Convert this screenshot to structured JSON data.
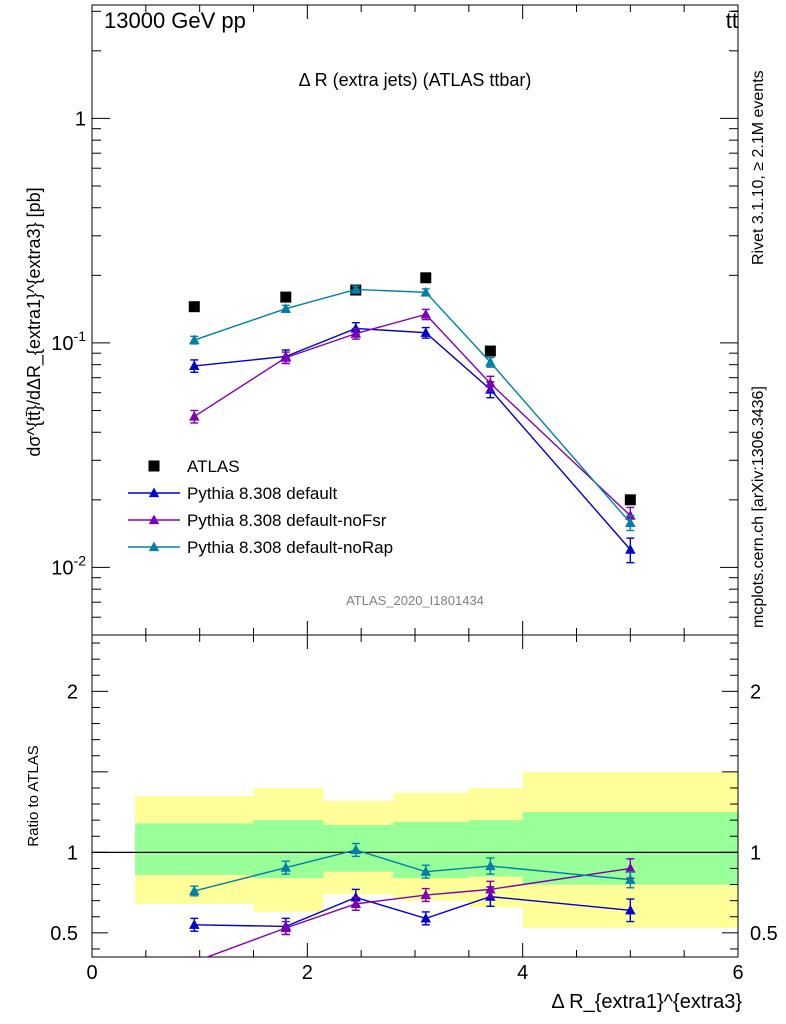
{
  "header": {
    "energy_label": "13000 GeV pp",
    "process_label": "tt̄"
  },
  "side_labels": {
    "rivet": "Rivet 3.1.10, ≥ 2.1M events",
    "mcplots": "mcplots.cern.ch [arXiv:1306.3436]"
  },
  "chart_data": [
    {
      "type": "scatter",
      "panel": "main",
      "title": "Δ R (extra jets) (ATLAS ttbar)",
      "analysis_label": "ATLAS_2020_I1801434",
      "ylabel": "dσ^{tt̄}/dΔR_{extra1}^{extra3} [pb]",
      "yscale": "log",
      "xlim": [
        0,
        6
      ],
      "ylim": [
        0.005,
        3.2
      ],
      "ytick_labels": [
        "10^{-2}",
        "10^{-1}",
        "1"
      ],
      "x": [
        0.95,
        1.8,
        2.45,
        3.1,
        3.7,
        5.0
      ],
      "legend_placement": "lower-left",
      "series": [
        {
          "name": "ATLAS",
          "marker": "square",
          "color": "#000000",
          "values": [
            0.145,
            0.16,
            0.172,
            0.195,
            0.092,
            0.02
          ]
        },
        {
          "name": "Pythia 8.308 default",
          "marker": "triangle",
          "color": "#0000cc",
          "values": [
            0.079,
            0.087,
            0.116,
            0.111,
            0.062,
            0.012
          ],
          "errors": [
            0.005,
            0.006,
            0.007,
            0.006,
            0.005,
            0.0015
          ]
        },
        {
          "name": "Pythia 8.308 default-noFsr",
          "marker": "triangle",
          "color": "#8000b0",
          "values": [
            0.047,
            0.086,
            0.11,
            0.134,
            0.066,
            0.017
          ],
          "errors": [
            0.003,
            0.005,
            0.006,
            0.007,
            0.005,
            0.0015
          ]
        },
        {
          "name": "Pythia 8.308 default-noRap",
          "marker": "triangle",
          "color": "#0080a8",
          "values": [
            0.103,
            0.142,
            0.173,
            0.168,
            0.082,
            0.0158
          ],
          "errors": [
            0.004,
            0.005,
            0.006,
            0.006,
            0.004,
            0.0012
          ]
        }
      ]
    },
    {
      "type": "scatter",
      "panel": "ratio",
      "ylabel": "Ratio to ATLAS",
      "xlabel": "Δ R_{extra1}^{extra3}",
      "xlim": [
        0,
        6
      ],
      "ylim": [
        0.35,
        2.35
      ],
      "x_ticks": [
        0,
        2,
        4,
        6
      ],
      "y_ticks": [
        0.5,
        1,
        2
      ],
      "reference_line": 1,
      "bands": [
        {
          "x_low": 0.4,
          "x_high": 1.5,
          "stat_low": 0.86,
          "stat_high": 1.18,
          "total_low": 0.68,
          "total_high": 1.35
        },
        {
          "x_low": 1.5,
          "x_high": 2.15,
          "stat_low": 0.84,
          "stat_high": 1.2,
          "total_low": 0.63,
          "total_high": 1.4
        },
        {
          "x_low": 2.15,
          "x_high": 2.8,
          "stat_low": 0.88,
          "stat_high": 1.17,
          "total_low": 0.74,
          "total_high": 1.32
        },
        {
          "x_low": 2.8,
          "x_high": 3.5,
          "stat_low": 0.84,
          "stat_high": 1.19,
          "total_low": 0.7,
          "total_high": 1.37
        },
        {
          "x_low": 3.5,
          "x_high": 4.0,
          "stat_low": 0.85,
          "stat_high": 1.2,
          "total_low": 0.66,
          "total_high": 1.4
        },
        {
          "x_low": 4.0,
          "x_high": 6.0,
          "stat_low": 0.8,
          "stat_high": 1.25,
          "total_low": 0.53,
          "total_high": 1.5
        }
      ],
      "x": [
        0.95,
        1.8,
        2.45,
        3.1,
        3.7,
        5.0
      ],
      "series": [
        {
          "name": "Pythia 8.308 default",
          "marker": "triangle",
          "color": "#0000cc",
          "values": [
            0.55,
            0.54,
            0.72,
            0.59,
            0.725,
            0.64
          ],
          "errors": [
            0.04,
            0.05,
            0.05,
            0.04,
            0.06,
            0.07
          ]
        },
        {
          "name": "Pythia 8.308 default-noFsr",
          "marker": "triangle",
          "color": "#8000b0",
          "values": [
            0.32,
            0.53,
            0.68,
            0.735,
            0.77,
            0.9
          ],
          "errors": [
            0.03,
            0.04,
            0.04,
            0.04,
            0.05,
            0.06
          ]
        },
        {
          "name": "Pythia 8.308 default-noRap",
          "marker": "triangle",
          "color": "#0080a8",
          "values": [
            0.76,
            0.905,
            1.015,
            0.88,
            0.915,
            0.83
          ],
          "errors": [
            0.03,
            0.04,
            0.04,
            0.04,
            0.05,
            0.05
          ]
        }
      ]
    }
  ]
}
